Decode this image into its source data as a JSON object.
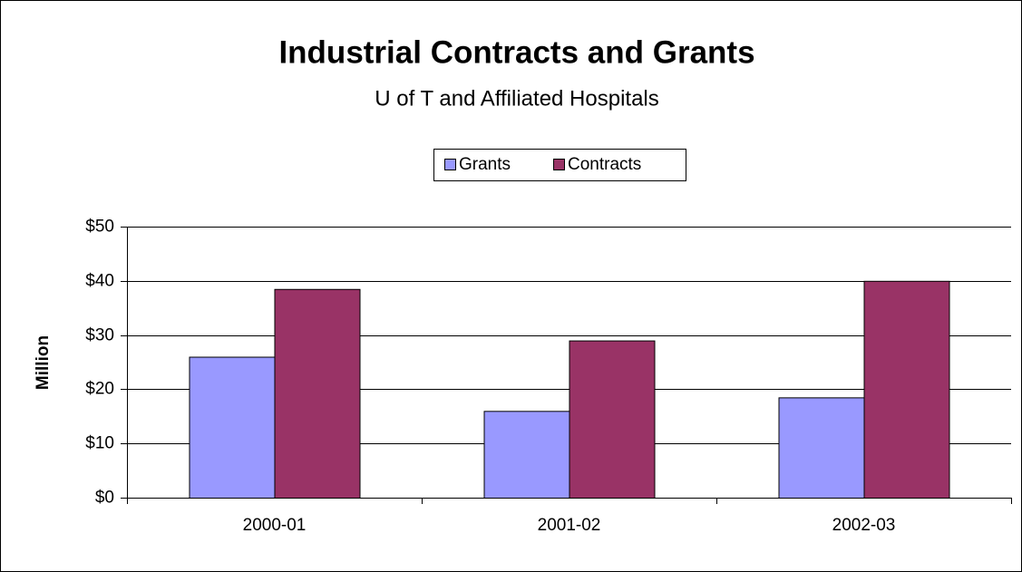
{
  "chart_data": {
    "type": "bar",
    "title": "Industrial Contracts and Grants",
    "subtitle": "U of T and Affiliated Hospitals",
    "y_label": "Million",
    "categories": [
      "2000-01",
      "2001-02",
      "2002-03"
    ],
    "series": [
      {
        "name": "Grants",
        "color": "#9999ff",
        "values": [
          26,
          16,
          18.5
        ]
      },
      {
        "name": "Contracts",
        "color": "#993366",
        "values": [
          38.5,
          29,
          40
        ]
      }
    ],
    "ylim": [
      0,
      50
    ],
    "yticks": [
      {
        "value": 0,
        "label": "$0"
      },
      {
        "value": 10,
        "label": "$10"
      },
      {
        "value": 20,
        "label": "$20"
      },
      {
        "value": 30,
        "label": "$30"
      },
      {
        "value": 40,
        "label": "$40"
      },
      {
        "value": 50,
        "label": "$50"
      }
    ],
    "grid": true,
    "legend": "top"
  }
}
